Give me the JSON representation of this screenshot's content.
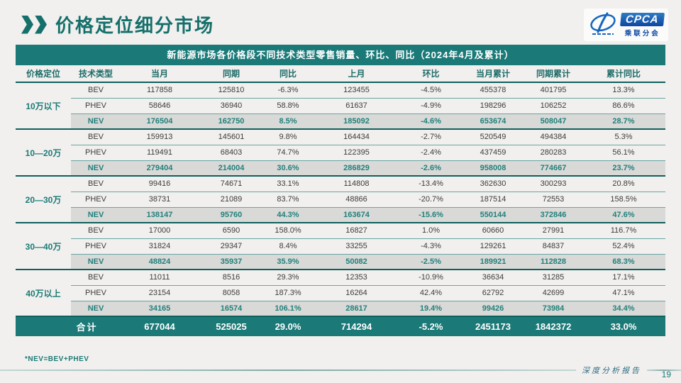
{
  "page": {
    "title": "价格定位细分市场",
    "footnote": "*NEV=BEV+PHEV",
    "footer_note": "深度分析报告",
    "page_number": "19"
  },
  "logo": {
    "name": "CPCA",
    "subtext": "乘联分会"
  },
  "colors": {
    "teal_accent": "#1b7a78",
    "teal_dark_border": "#0f605d",
    "nev_row_bg": "#d9d9d7",
    "total_row_bg": "#1b7a78",
    "logo_blue": "#0d47a1"
  },
  "table": {
    "title": "新能源市场各价格段不同技术类型零售销量、环比、同比（2024年4月及累计）",
    "headers": [
      "价格定位",
      "技术类型",
      "当月",
      "同期",
      "同比",
      "上月",
      "环比",
      "当月累计",
      "同期累计",
      "累计同比"
    ],
    "groups": [
      {
        "label": "10万以下",
        "rows": [
          {
            "type": "BEV",
            "cells": [
              "117858",
              "125810",
              "-6.3%",
              "123455",
              "-4.5%",
              "455378",
              "401795",
              "13.3%"
            ]
          },
          {
            "type": "PHEV",
            "cells": [
              "58646",
              "36940",
              "58.8%",
              "61637",
              "-4.9%",
              "198296",
              "106252",
              "86.6%"
            ]
          },
          {
            "type": "NEV",
            "cells": [
              "176504",
              "162750",
              "8.5%",
              "185092",
              "-4.6%",
              "653674",
              "508047",
              "28.7%"
            ]
          }
        ]
      },
      {
        "label": "10—20万",
        "rows": [
          {
            "type": "BEV",
            "cells": [
              "159913",
              "145601",
              "9.8%",
              "164434",
              "-2.7%",
              "520549",
              "494384",
              "5.3%"
            ]
          },
          {
            "type": "PHEV",
            "cells": [
              "119491",
              "68403",
              "74.7%",
              "122395",
              "-2.4%",
              "437459",
              "280283",
              "56.1%"
            ]
          },
          {
            "type": "NEV",
            "cells": [
              "279404",
              "214004",
              "30.6%",
              "286829",
              "-2.6%",
              "958008",
              "774667",
              "23.7%"
            ]
          }
        ]
      },
      {
        "label": "20—30万",
        "rows": [
          {
            "type": "BEV",
            "cells": [
              "99416",
              "74671",
              "33.1%",
              "114808",
              "-13.4%",
              "362630",
              "300293",
              "20.8%"
            ]
          },
          {
            "type": "PHEV",
            "cells": [
              "38731",
              "21089",
              "83.7%",
              "48866",
              "-20.7%",
              "187514",
              "72553",
              "158.5%"
            ]
          },
          {
            "type": "NEV",
            "cells": [
              "138147",
              "95760",
              "44.3%",
              "163674",
              "-15.6%",
              "550144",
              "372846",
              "47.6%"
            ]
          }
        ]
      },
      {
        "label": "30—40万",
        "rows": [
          {
            "type": "BEV",
            "cells": [
              "17000",
              "6590",
              "158.0%",
              "16827",
              "1.0%",
              "60660",
              "27991",
              "116.7%"
            ]
          },
          {
            "type": "PHEV",
            "cells": [
              "31824",
              "29347",
              "8.4%",
              "33255",
              "-4.3%",
              "129261",
              "84837",
              "52.4%"
            ]
          },
          {
            "type": "NEV",
            "cells": [
              "48824",
              "35937",
              "35.9%",
              "50082",
              "-2.5%",
              "189921",
              "112828",
              "68.3%"
            ]
          }
        ]
      },
      {
        "label": "40万以上",
        "rows": [
          {
            "type": "BEV",
            "cells": [
              "11011",
              "8516",
              "29.3%",
              "12353",
              "-10.9%",
              "36634",
              "31285",
              "17.1%"
            ]
          },
          {
            "type": "PHEV",
            "cells": [
              "23154",
              "8058",
              "187.3%",
              "16264",
              "42.4%",
              "62792",
              "42699",
              "47.1%"
            ]
          },
          {
            "type": "NEV",
            "cells": [
              "34165",
              "16574",
              "106.1%",
              "28617",
              "19.4%",
              "99426",
              "73984",
              "34.4%"
            ]
          }
        ]
      }
    ],
    "total": {
      "label": "合计",
      "cells": [
        "677044",
        "525025",
        "29.0%",
        "714294",
        "-5.2%",
        "2451173",
        "1842372",
        "33.0%"
      ]
    }
  }
}
